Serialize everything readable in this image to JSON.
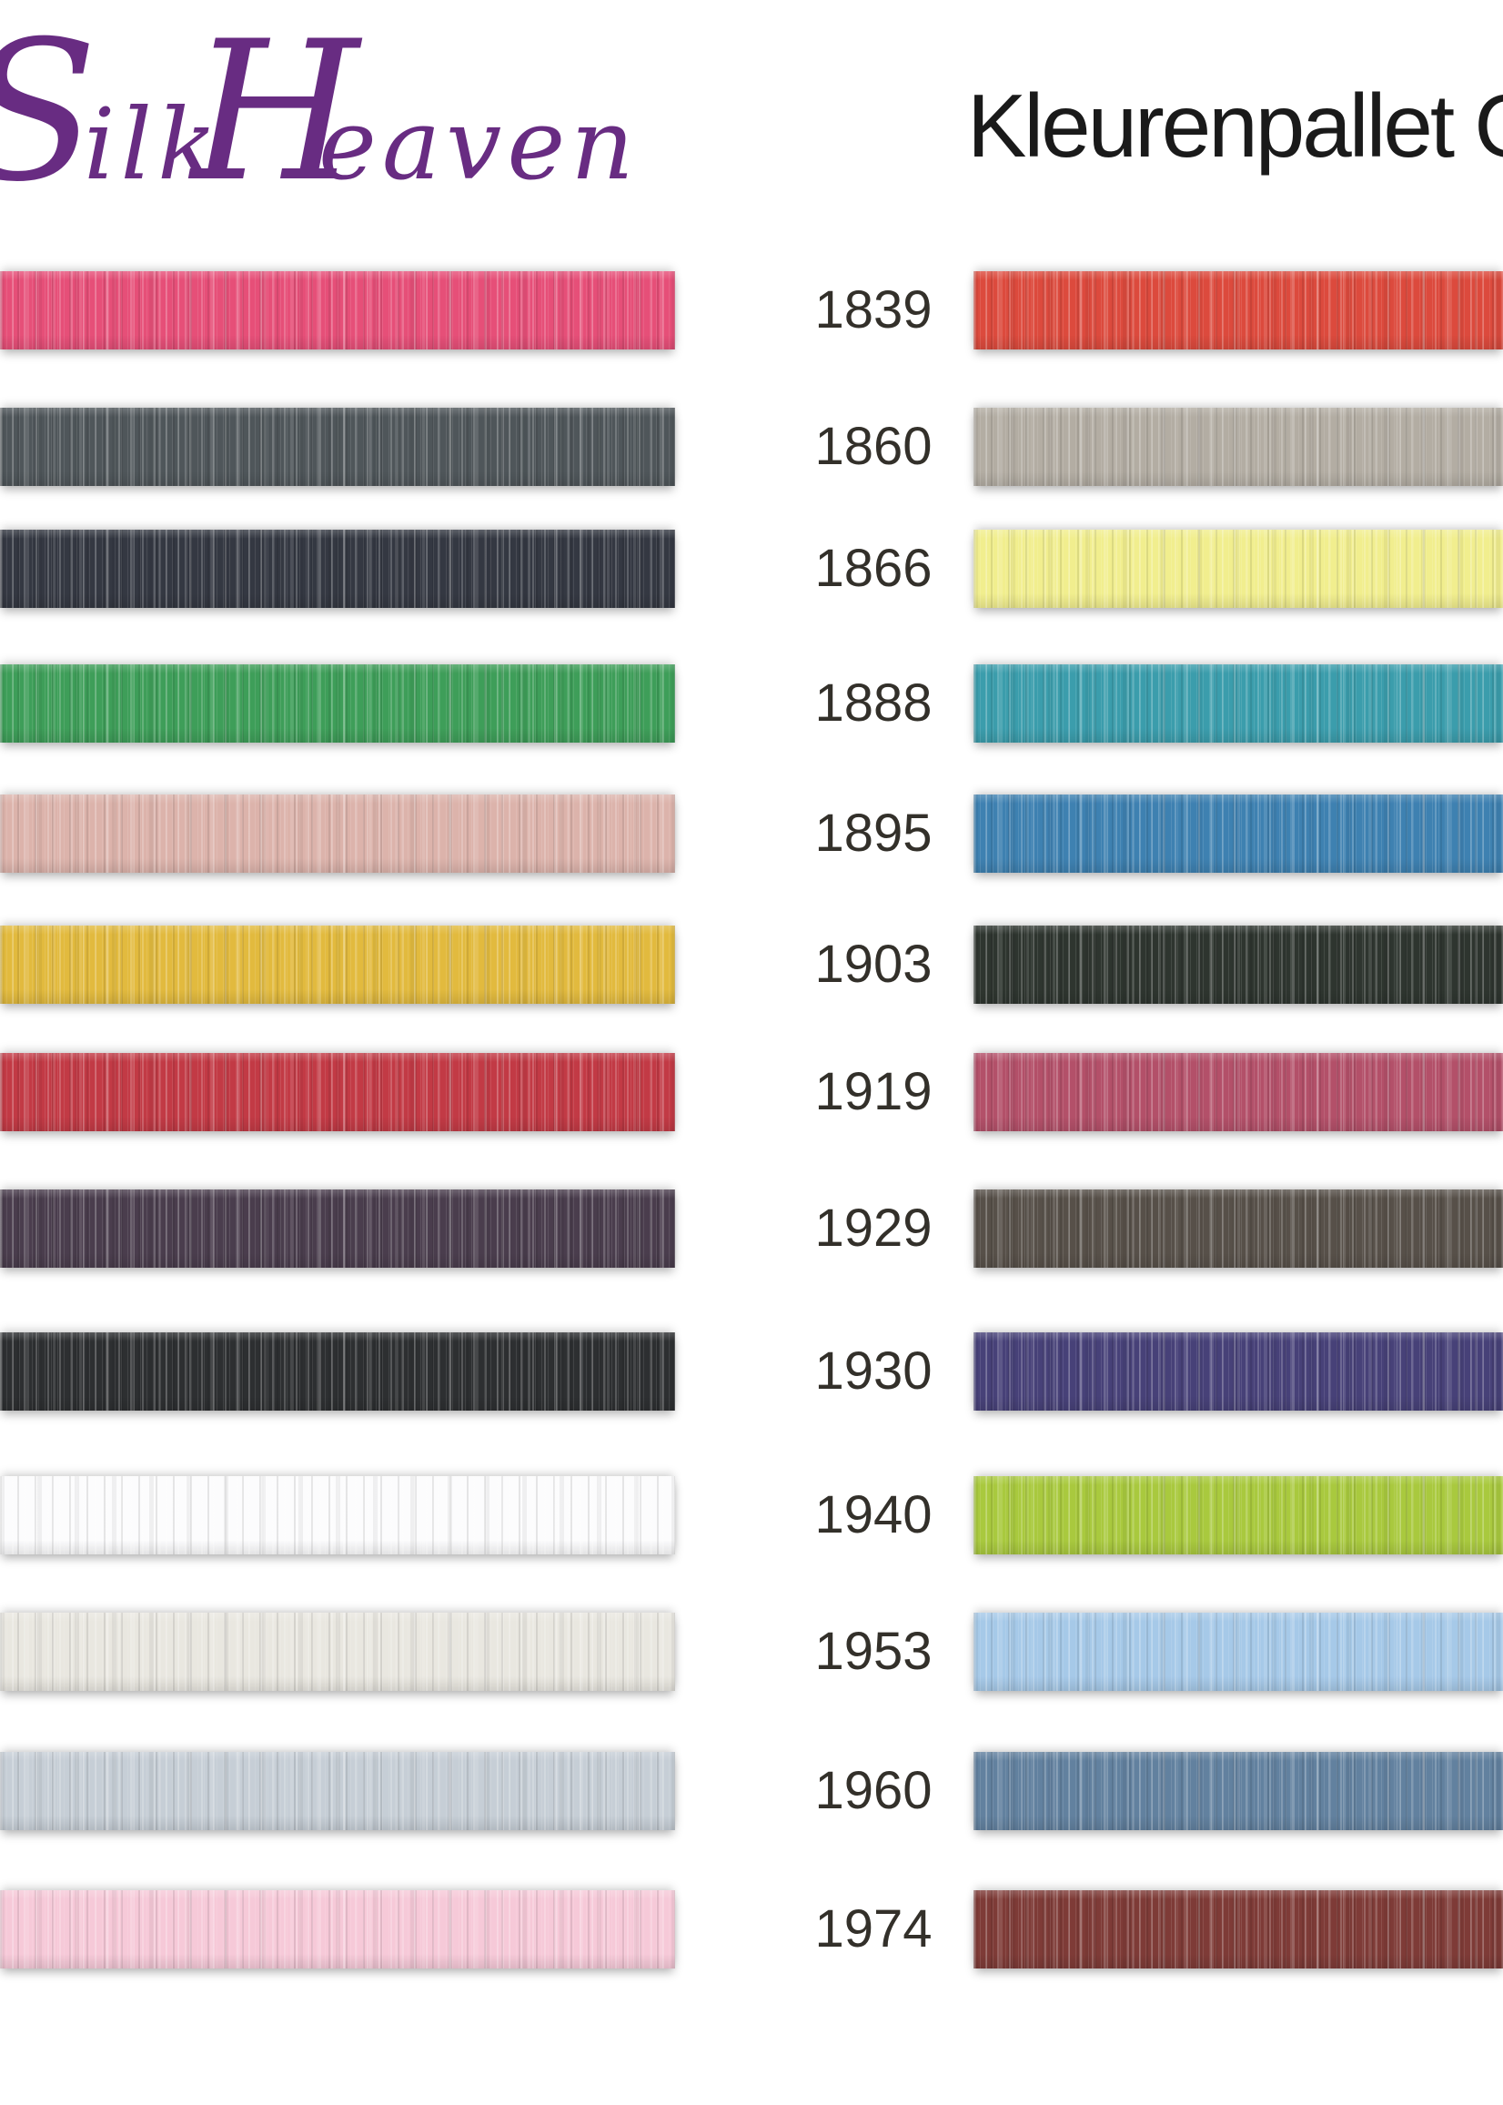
{
  "page": {
    "background": "#ffffff"
  },
  "logo": {
    "text": "Silk Heaven",
    "color": "#682c82"
  },
  "header": {
    "title": "Kleurenpallet G",
    "color": "#1a1a1a"
  },
  "palette": {
    "code_color": "#33302a",
    "rows": [
      {
        "code": "1839",
        "left_color": "#e64f78",
        "right_color": "#dc4a3d"
      },
      {
        "code": "1860",
        "left_color": "#4f565a",
        "right_color": "#b3ada3"
      },
      {
        "code": "1866",
        "left_color": "#343842",
        "right_color": "#f1ee8e"
      },
      {
        "code": "1888",
        "left_color": "#3e9e59",
        "right_color": "#3b9dac"
      },
      {
        "code": "1895",
        "left_color": "#dcb3ab",
        "right_color": "#3e81b1"
      },
      {
        "code": "1903",
        "left_color": "#e2ba3e",
        "right_color": "#2e352f"
      },
      {
        "code": "1919",
        "left_color": "#c23a45",
        "right_color": "#b35069"
      },
      {
        "code": "1929",
        "left_color": "#4a3d4d",
        "right_color": "#575049"
      },
      {
        "code": "1930",
        "left_color": "#2d2f31",
        "right_color": "#474178"
      },
      {
        "code": "1940",
        "left_color": "#fcfcfd",
        "right_color": "#a9c93e"
      },
      {
        "code": "1953",
        "left_color": "#e9e7e0",
        "right_color": "#a6c9e8"
      },
      {
        "code": "1960",
        "left_color": "#c6ced6",
        "right_color": "#62819f"
      },
      {
        "code": "1974",
        "left_color": "#f6c9d8",
        "right_color": "#7e3b37"
      }
    ]
  }
}
